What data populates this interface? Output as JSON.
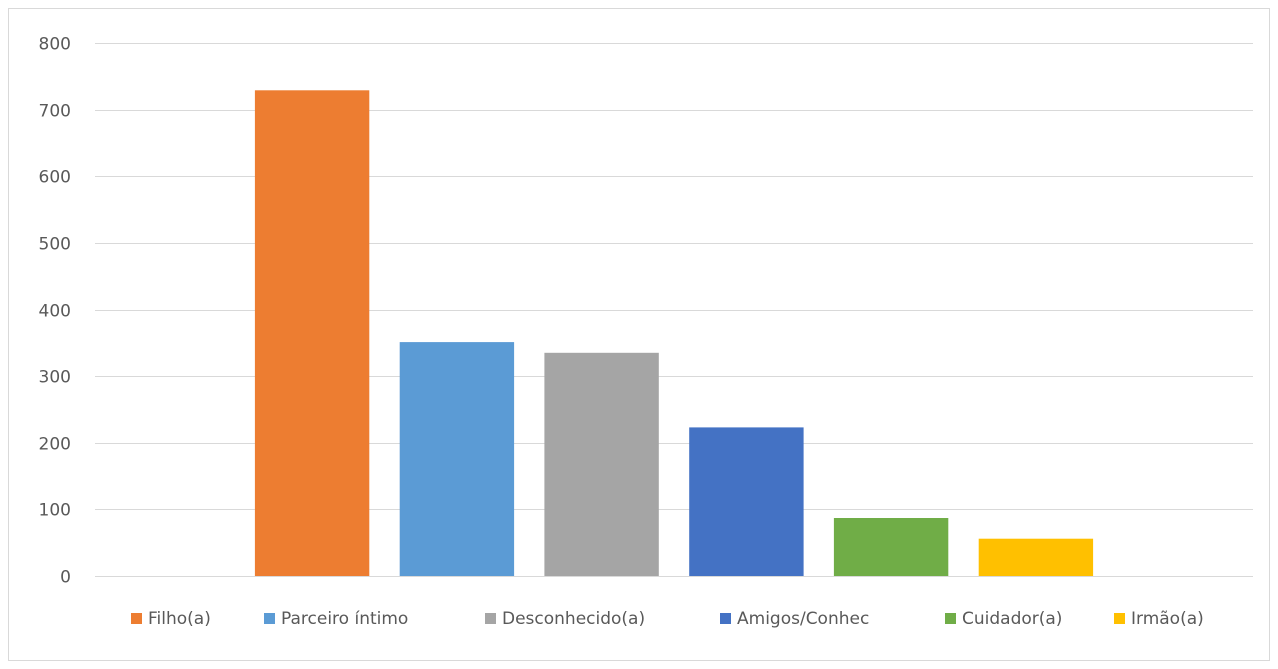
{
  "chart_data": {
    "type": "bar",
    "title": "",
    "xlabel": "",
    "ylabel": "",
    "ylim": [
      0,
      800
    ],
    "yticks": [
      0,
      100,
      200,
      300,
      400,
      500,
      600,
      700,
      800
    ],
    "grid": true,
    "legend_position": "bottom",
    "series": [
      {
        "name": "Filho(a)",
        "value": 729,
        "color": "#ED7D31"
      },
      {
        "name": "Parceiro íntimo",
        "value": 351,
        "color": "#5B9BD5"
      },
      {
        "name": "Desconhecido(a)",
        "value": 335,
        "color": "#A5A5A5"
      },
      {
        "name": "Amigos/Conhec",
        "value": 223,
        "color": "#4472C4"
      },
      {
        "name": "Cuidador(a)",
        "value": 87,
        "color": "#70AD47"
      },
      {
        "name": "Irmão(a)",
        "value": 56,
        "color": "#FFC000"
      }
    ]
  }
}
